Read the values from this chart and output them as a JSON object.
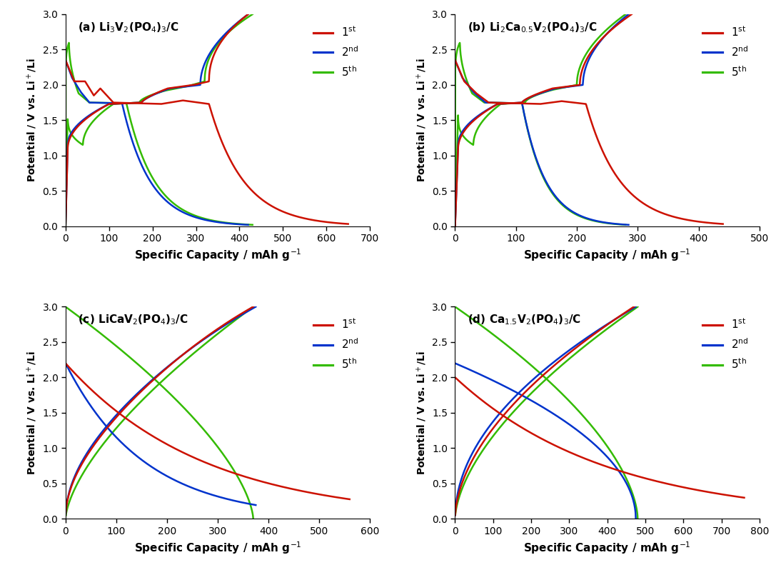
{
  "panels": [
    {
      "label": "(a) ",
      "title_latex": "Li$_3$V$_2$(PO$_4$)$_3$/C",
      "xlim": [
        0,
        700
      ],
      "xticks": [
        0,
        100,
        200,
        300,
        400,
        500,
        600,
        700
      ],
      "ylim": [
        0.0,
        3.0
      ],
      "yticks": [
        0.0,
        0.5,
        1.0,
        1.5,
        2.0,
        2.5,
        3.0
      ]
    },
    {
      "label": "(b) ",
      "title_latex": "Li$_2$Ca$_{0.5}$V$_2$(PO$_4$)$_3$/C",
      "xlim": [
        0,
        500
      ],
      "xticks": [
        0,
        100,
        200,
        300,
        400,
        500
      ],
      "ylim": [
        0.0,
        3.0
      ],
      "yticks": [
        0.0,
        0.5,
        1.0,
        1.5,
        2.0,
        2.5,
        3.0
      ]
    },
    {
      "label": "(c) ",
      "title_latex": "LiCaV$_2$(PO$_4$)$_3$/C",
      "xlim": [
        0,
        600
      ],
      "xticks": [
        0,
        100,
        200,
        300,
        400,
        500,
        600
      ],
      "ylim": [
        0.0,
        3.0
      ],
      "yticks": [
        0.0,
        0.5,
        1.0,
        1.5,
        2.0,
        2.5,
        3.0
      ]
    },
    {
      "label": "(d) ",
      "title_latex": "Ca$_{1.5}$V$_2$(PO$_4$)$_3$/C",
      "xlim": [
        0,
        800
      ],
      "xticks": [
        0,
        100,
        200,
        300,
        400,
        500,
        600,
        700,
        800
      ],
      "ylim": [
        0.0,
        3.0
      ],
      "yticks": [
        0.0,
        0.5,
        1.0,
        1.5,
        2.0,
        2.5,
        3.0
      ]
    }
  ],
  "colors": {
    "1st": "#CC1100",
    "2nd": "#0033CC",
    "5th": "#33BB00"
  },
  "linewidth": 1.8,
  "ylabel": "Potential / V vs. Li$^+$/Li",
  "xlabel": "Specific Capacity / mAh g$^{-1}$",
  "bg_color": "#ffffff",
  "legend_labels": [
    "1$^{\\rm st}$",
    "2$^{\\rm nd}$",
    "5$^{\\rm th}$"
  ]
}
